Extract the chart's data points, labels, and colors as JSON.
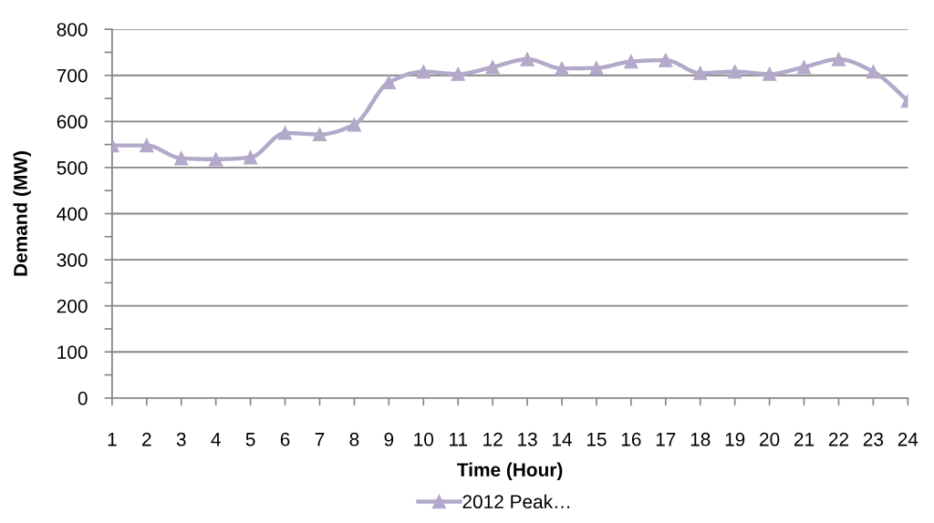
{
  "chart_data": {
    "type": "line",
    "xlabel": "Time (Hour)",
    "ylabel": "Demand (MW)",
    "categories": [
      "1",
      "2",
      "3",
      "4",
      "5",
      "6",
      "7",
      "8",
      "9",
      "10",
      "11",
      "12",
      "13",
      "14",
      "15",
      "16",
      "17",
      "18",
      "19",
      "20",
      "21",
      "22",
      "23",
      "24"
    ],
    "series": [
      {
        "name": "2012 Peak…",
        "color": "#b3a9c9",
        "values": [
          548,
          548,
          520,
          518,
          522,
          575,
          572,
          593,
          685,
          708,
          703,
          718,
          735,
          715,
          716,
          730,
          733,
          705,
          708,
          703,
          718,
          735,
          708,
          645
        ]
      }
    ],
    "ylim": [
      0,
      800
    ],
    "yticks": [
      0,
      {
        "value": 50,
        "label": null
      },
      100,
      {
        "value": 150,
        "label": null
      },
      200,
      {
        "value": 250,
        "label": null
      },
      300,
      {
        "value": 350,
        "label": null
      },
      400,
      {
        "value": 450,
        "label": null
      },
      500,
      {
        "value": 550,
        "label": null
      },
      600,
      {
        "value": 650,
        "label": null
      },
      700,
      {
        "value": 750,
        "label": null
      },
      800
    ],
    "grid": "y",
    "legend": "bottom",
    "marker": "triangle",
    "line_style": "solid"
  }
}
